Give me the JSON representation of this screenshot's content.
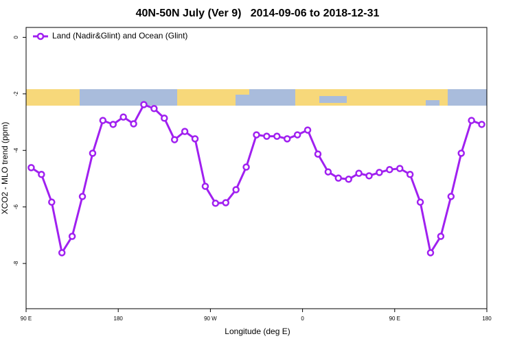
{
  "chart_data": {
    "type": "line",
    "title": "40N-50N July (Ver 9)   2014-09-06 to 2018-12-31",
    "x_label": "Longitude (deg E)",
    "y_label": "XCO2 - MLO trend (ppm)",
    "x": [
      95,
      105,
      115,
      125,
      135,
      145,
      155,
      165,
      175,
      185,
      195,
      205,
      215,
      225,
      235,
      245,
      255,
      265,
      275,
      285,
      295,
      305,
      315,
      325,
      335,
      345,
      355,
      365,
      375,
      385,
      395,
      405,
      415,
      425,
      435,
      445,
      455,
      465,
      475,
      485,
      495,
      505,
      515,
      525,
      535
    ],
    "series": [
      {
        "name": "Land (Nadir&Glint) and Ocean (Glint)",
        "color": "#a020f0",
        "values": [
          -4.61,
          -4.85,
          -5.83,
          -7.62,
          -7.04,
          -5.63,
          -4.1,
          -2.94,
          -3.08,
          -2.82,
          -3.06,
          -2.38,
          -2.52,
          -2.86,
          -3.62,
          -3.33,
          -3.59,
          -5.27,
          -5.87,
          -5.85,
          -5.39,
          -4.59,
          -3.45,
          -3.5,
          -3.5,
          -3.59,
          -3.45,
          -3.28,
          -4.13,
          -4.76,
          -4.98,
          -5.02,
          -4.81,
          -4.9,
          -4.78,
          -4.68,
          -4.64,
          -4.85,
          -5.83,
          -7.62,
          -7.04,
          -5.63,
          -4.1,
          -2.94,
          -3.08
        ]
      }
    ],
    "xlim": [
      90,
      540
    ],
    "xticks": [
      {
        "value": 90,
        "label": "90 E"
      },
      {
        "value": 180,
        "label": "180"
      },
      {
        "value": 270,
        "label": "90 W"
      },
      {
        "value": 360,
        "label": "0"
      },
      {
        "value": 450,
        "label": "90 E"
      },
      {
        "value": 540,
        "label": "180"
      }
    ],
    "ylim": [
      -9.6,
      0.35
    ],
    "yticks": [
      0,
      -2,
      -4,
      -6,
      -8
    ],
    "legend": "top-left"
  }
}
